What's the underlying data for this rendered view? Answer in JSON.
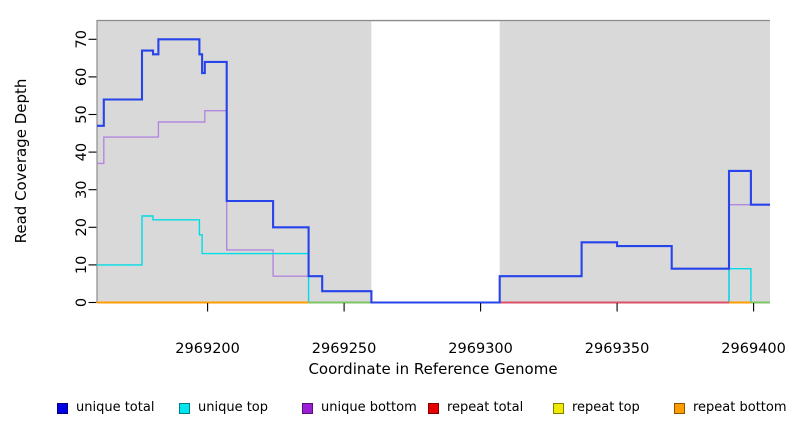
{
  "chart_data": {
    "type": "line",
    "subtype": "step-coverage",
    "title": "",
    "xlabel": "Coordinate in Reference Genome",
    "ylabel": "Read Coverage Depth",
    "xlim": [
      2969159.5,
      2969406
    ],
    "ylim": [
      0,
      75
    ],
    "xticks": [
      2969200,
      2969250,
      2969300,
      2969350,
      2969400
    ],
    "yticks": [
      0,
      10,
      20,
      30,
      40,
      50,
      60,
      70
    ],
    "grid": "off",
    "legend_position": "bottom",
    "plot_bg": "#d9d9d9",
    "border_color": "#8c8c8c",
    "tick_color": "#000000",
    "highlight_band": {
      "x0": 2969260,
      "x1": 2969307,
      "color": "#ffffff"
    },
    "series": [
      {
        "name": "unique total",
        "color": "#2743ea",
        "legend_color": "#0000e6",
        "width": 2.1,
        "points": [
          [
            2969159.5,
            47
          ],
          [
            2969162,
            54
          ],
          [
            2969176,
            67
          ],
          [
            2969180,
            66
          ],
          [
            2969182,
            70
          ],
          [
            2969197,
            66
          ],
          [
            2969198,
            61
          ],
          [
            2969199,
            64
          ],
          [
            2969207,
            27
          ],
          [
            2969224,
            20
          ],
          [
            2969237,
            7
          ],
          [
            2969242,
            3
          ],
          [
            2969260,
            0
          ],
          [
            2969307,
            7
          ],
          [
            2969337,
            16
          ],
          [
            2969350,
            15
          ],
          [
            2969370,
            9
          ],
          [
            2969391,
            35
          ],
          [
            2969399,
            26
          ],
          [
            2969406,
            26
          ]
        ]
      },
      {
        "name": "unique top",
        "color": "#00dde6",
        "legend_color": "#00e5ee",
        "width": 1.4,
        "points": [
          [
            2969159.5,
            10
          ],
          [
            2969176,
            23
          ],
          [
            2969180,
            22
          ],
          [
            2969197,
            18
          ],
          [
            2969198,
            13
          ],
          [
            2969237,
            0
          ],
          [
            2969391,
            9
          ],
          [
            2969399,
            0
          ],
          [
            2969406,
            0
          ]
        ]
      },
      {
        "name": "unique bottom",
        "color": "#b287de",
        "legend_color": "#9b1fd6",
        "width": 1.4,
        "points": [
          [
            2969159.5,
            37
          ],
          [
            2969162,
            44
          ],
          [
            2969182,
            48
          ],
          [
            2969199,
            51
          ],
          [
            2969207,
            14
          ],
          [
            2969224,
            7
          ],
          [
            2969242,
            3
          ],
          [
            2969260,
            0
          ],
          [
            2969391,
            26
          ],
          [
            2969406,
            26
          ]
        ]
      },
      {
        "name": "repeat total",
        "color": "#dd4f68",
        "legend_color": "#e60000",
        "width": 1.6,
        "points": [
          [
            2969307,
            0
          ],
          [
            2969391,
            0
          ]
        ]
      },
      {
        "name": "repeat top",
        "color": "#7cc465",
        "legend_color": "#efe800",
        "width": 1.6,
        "points": [
          [
            2969237,
            0
          ],
          [
            2969260,
            0
          ],
          [
            2969399,
            0
          ],
          [
            2969406,
            0
          ]
        ]
      },
      {
        "name": "repeat bottom",
        "color": "#ff9d00",
        "legend_color": "#ff9d00",
        "width": 1.8,
        "points": [
          [
            2969159.5,
            0
          ],
          [
            2969237,
            0
          ],
          [
            2969391,
            0
          ],
          [
            2969399,
            0
          ]
        ]
      }
    ],
    "baseline_segments": [
      {
        "x0": 2969159.5,
        "x1": 2969237,
        "color": "#ff9d00"
      },
      {
        "x0": 2969237,
        "x1": 2969260,
        "color": "#7cc465"
      },
      {
        "x0": 2969307,
        "x1": 2969391,
        "color": "#dd4f68"
      },
      {
        "x0": 2969391,
        "x1": 2969399,
        "color": "#ff9d00"
      },
      {
        "x0": 2969399,
        "x1": 2969406,
        "color": "#7cc465"
      }
    ],
    "draw_sequence": [
      2,
      1,
      "baseline",
      0
    ]
  }
}
